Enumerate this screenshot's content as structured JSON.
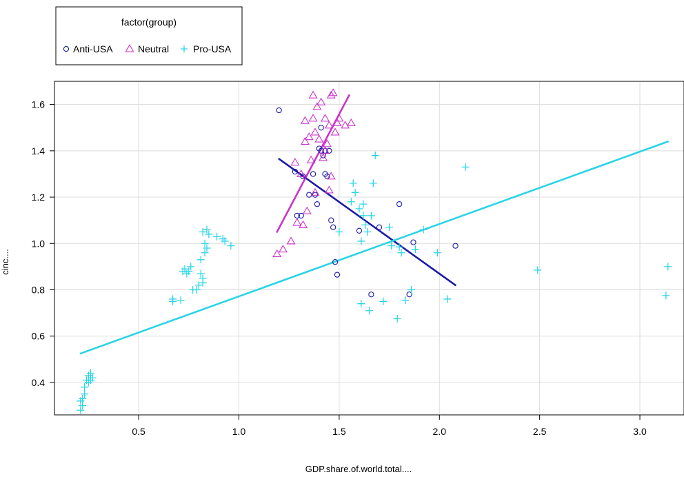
{
  "chart_data": {
    "type": "scatter",
    "xlabel": "GDP.share.of.world.total....",
    "ylabel": "cinc....",
    "xlim": [
      0.08,
      3.22
    ],
    "ylim": [
      0.26,
      1.7
    ],
    "x_ticks": [
      0.5,
      1.0,
      1.5,
      2.0,
      2.5,
      3.0
    ],
    "y_ticks": [
      0.4,
      0.6,
      0.8,
      1.0,
      1.2,
      1.4,
      1.6
    ],
    "x_tick_labels": [
      "0.5",
      "1.0",
      "1.5",
      "2.0",
      "2.5",
      "3.0"
    ],
    "y_tick_labels": [
      "0.4",
      "0.6",
      "0.8",
      "1.0",
      "1.2",
      "1.4",
      "1.6"
    ],
    "grid": true,
    "legend": {
      "title": "factor(group)",
      "placement": "top-left, outside plot",
      "entries": [
        "Anti-USA",
        "Neutral",
        "Pro-USA"
      ]
    },
    "series": [
      {
        "name": "Anti-USA",
        "marker": "circle",
        "color": "#1a1aa6",
        "points": [
          [
            1.2,
            1.575
          ],
          [
            1.28,
            1.31
          ],
          [
            1.29,
            1.12
          ],
          [
            1.31,
            1.12
          ],
          [
            1.32,
            1.29
          ],
          [
            1.35,
            1.21
          ],
          [
            1.37,
            1.3
          ],
          [
            1.38,
            1.21
          ],
          [
            1.39,
            1.17
          ],
          [
            1.4,
            1.41
          ],
          [
            1.41,
            1.5
          ],
          [
            1.41,
            1.4
          ],
          [
            1.42,
            1.38
          ],
          [
            1.43,
            1.3
          ],
          [
            1.43,
            1.4
          ],
          [
            1.44,
            1.29
          ],
          [
            1.45,
            1.4
          ],
          [
            1.46,
            1.1
          ],
          [
            1.47,
            1.07
          ],
          [
            1.48,
            0.92
          ],
          [
            1.49,
            0.865
          ],
          [
            1.6,
            1.055
          ],
          [
            1.66,
            0.78
          ],
          [
            1.7,
            1.07
          ],
          [
            1.8,
            1.17
          ],
          [
            1.85,
            0.78
          ],
          [
            1.87,
            1.005
          ],
          [
            2.08,
            0.99
          ]
        ]
      },
      {
        "name": "Neutral",
        "marker": "triangle",
        "color": "#cc33cc",
        "points": [
          [
            1.19,
            0.955
          ],
          [
            1.22,
            0.975
          ],
          [
            1.26,
            1.01
          ],
          [
            1.28,
            1.35
          ],
          [
            1.29,
            1.09
          ],
          [
            1.31,
            1.3
          ],
          [
            1.32,
            1.08
          ],
          [
            1.33,
            1.44
          ],
          [
            1.33,
            1.53
          ],
          [
            1.34,
            1.14
          ],
          [
            1.35,
            1.46
          ],
          [
            1.36,
            1.36
          ],
          [
            1.37,
            1.64
          ],
          [
            1.37,
            1.54
          ],
          [
            1.38,
            1.48
          ],
          [
            1.38,
            1.22
          ],
          [
            1.39,
            1.59
          ],
          [
            1.4,
            1.45
          ],
          [
            1.41,
            1.61
          ],
          [
            1.42,
            1.37
          ],
          [
            1.43,
            1.4
          ],
          [
            1.43,
            1.54
          ],
          [
            1.44,
            1.43
          ],
          [
            1.45,
            1.51
          ],
          [
            1.45,
            1.23
          ],
          [
            1.46,
            1.64
          ],
          [
            1.46,
            1.29
          ],
          [
            1.47,
            1.65
          ],
          [
            1.48,
            1.48
          ],
          [
            1.49,
            1.52
          ],
          [
            1.5,
            1.54
          ],
          [
            1.53,
            1.51
          ],
          [
            1.56,
            1.52
          ]
        ]
      },
      {
        "name": "Pro-USA",
        "marker": "plus",
        "color": "#2ad4e6",
        "points": [
          [
            0.21,
            0.32
          ],
          [
            0.21,
            0.28
          ],
          [
            0.22,
            0.33
          ],
          [
            0.22,
            0.3
          ],
          [
            0.23,
            0.38
          ],
          [
            0.23,
            0.35
          ],
          [
            0.24,
            0.41
          ],
          [
            0.25,
            0.43
          ],
          [
            0.25,
            0.4
          ],
          [
            0.26,
            0.44
          ],
          [
            0.26,
            0.41
          ],
          [
            0.27,
            0.42
          ],
          [
            0.67,
            0.76
          ],
          [
            0.67,
            0.75
          ],
          [
            0.71,
            0.755
          ],
          [
            0.72,
            0.88
          ],
          [
            0.73,
            0.89
          ],
          [
            0.74,
            0.87
          ],
          [
            0.75,
            0.88
          ],
          [
            0.76,
            0.9
          ],
          [
            0.77,
            0.8
          ],
          [
            0.79,
            0.8
          ],
          [
            0.8,
            0.82
          ],
          [
            0.81,
            0.87
          ],
          [
            0.81,
            0.93
          ],
          [
            0.82,
            0.85
          ],
          [
            0.82,
            0.83
          ],
          [
            0.82,
            1.05
          ],
          [
            0.83,
            0.96
          ],
          [
            0.83,
            1.0
          ],
          [
            0.84,
            1.06
          ],
          [
            0.84,
            0.98
          ],
          [
            0.85,
            1.04
          ],
          [
            0.89,
            1.03
          ],
          [
            0.92,
            1.02
          ],
          [
            0.93,
            1.01
          ],
          [
            0.96,
            0.99
          ],
          [
            1.5,
            1.05
          ],
          [
            1.56,
            1.18
          ],
          [
            1.57,
            1.26
          ],
          [
            1.58,
            1.22
          ],
          [
            1.6,
            1.15
          ],
          [
            1.61,
            1.01
          ],
          [
            1.61,
            0.74
          ],
          [
            1.62,
            1.12
          ],
          [
            1.62,
            1.17
          ],
          [
            1.63,
            1.08
          ],
          [
            1.64,
            1.05
          ],
          [
            1.65,
            0.71
          ],
          [
            1.66,
            1.12
          ],
          [
            1.67,
            1.26
          ],
          [
            1.68,
            1.38
          ],
          [
            1.72,
            0.75
          ],
          [
            1.75,
            1.07
          ],
          [
            1.76,
            0.99
          ],
          [
            1.79,
            0.675
          ],
          [
            1.8,
            0.985
          ],
          [
            1.81,
            0.96
          ],
          [
            1.83,
            0.755
          ],
          [
            1.86,
            0.8
          ],
          [
            1.88,
            0.975
          ],
          [
            1.92,
            1.06
          ],
          [
            1.99,
            0.96
          ],
          [
            2.04,
            0.76
          ],
          [
            2.13,
            1.33
          ],
          [
            2.49,
            0.885
          ],
          [
            3.13,
            0.775
          ],
          [
            3.14,
            0.9
          ]
        ]
      }
    ],
    "fit_lines": [
      {
        "series": "Anti-USA",
        "color": "#1a1aa6",
        "from": [
          1.2,
          1.365
        ],
        "to": [
          2.08,
          0.82
        ]
      },
      {
        "series": "Neutral",
        "color": "#cc33cc",
        "from": [
          1.19,
          1.05
        ],
        "to": [
          1.55,
          1.64
        ]
      },
      {
        "series": "Pro-USA",
        "color": "#2ad4e6",
        "from": [
          0.21,
          0.525
        ],
        "to": [
          3.14,
          1.44
        ]
      }
    ]
  }
}
